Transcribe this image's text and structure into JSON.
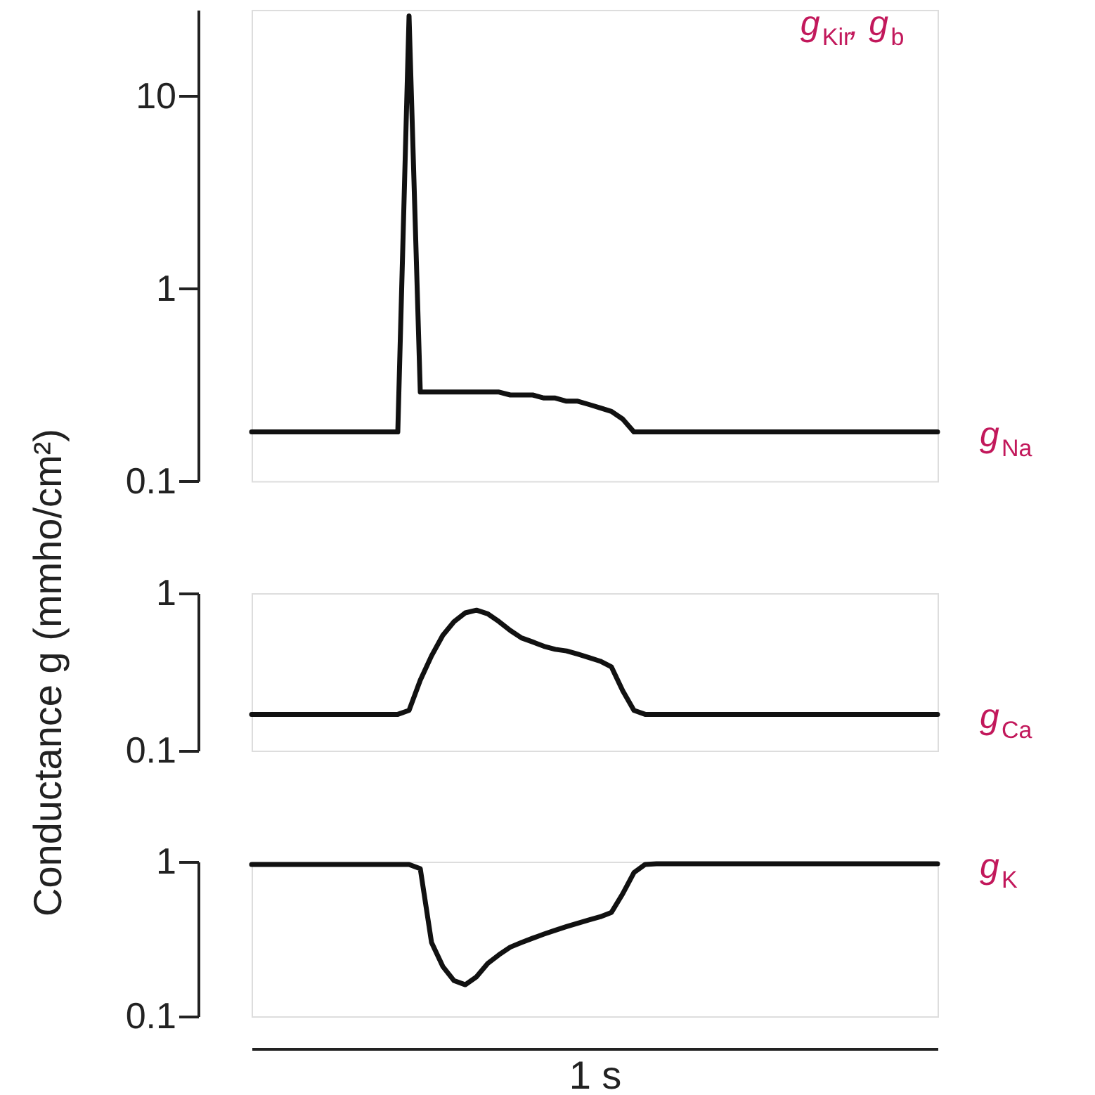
{
  "chart_data": [
    {
      "type": "line",
      "annotations": [
        "g$_{Kir}$, g$_{b}$"
      ],
      "log": true,
      "ylim": [
        0.1,
        28
      ],
      "yticks": [
        0.1,
        1,
        10
      ],
      "tick_labels": "y",
      "categories": [
        null,
        null,
        null,
        null,
        null,
        null,
        null,
        null,
        null,
        null,
        null,
        null,
        null,
        null,
        null,
        null,
        null,
        null,
        null,
        null,
        null,
        null,
        null,
        null,
        null,
        null,
        null,
        null,
        null,
        null,
        null,
        null,
        null,
        null,
        null,
        null,
        null,
        null,
        null,
        null,
        null,
        null,
        null,
        null,
        null,
        null,
        null,
        null,
        null,
        null,
        null,
        null,
        null,
        null,
        null,
        null,
        null,
        null,
        null,
        null,
        null,
        null
      ],
      "series": [
        {
          "name": "g$_{Na}$",
          "color": "#111111",
          "values": [
            0.18,
            0.18,
            0.18,
            0.18,
            0.18,
            0.18,
            0.18,
            0.18,
            0.18,
            0.18,
            0.18,
            0.18,
            0.18,
            0.18,
            26,
            0.29,
            0.29,
            0.29,
            0.29,
            0.29,
            0.29,
            0.29,
            0.29,
            0.28,
            0.28,
            0.28,
            0.27,
            0.27,
            0.26,
            0.26,
            0.25,
            0.24,
            0.23,
            0.21,
            0.18,
            0.18,
            0.18,
            0.18,
            0.18,
            0.18,
            0.18,
            0.18,
            0.18,
            0.18,
            0.18,
            0.18,
            0.18,
            0.18,
            0.18,
            0.18,
            0.18,
            0.18,
            0.18,
            0.18,
            0.18,
            0.18,
            0.18,
            0.18,
            0.18,
            0.18,
            0.18,
            0.18
          ]
        }
      ]
    },
    {
      "type": "line",
      "ylabel": "Conductance g (mmho/cm²)",
      "log": true,
      "ylim": [
        0.1,
        1
      ],
      "yticks": [
        0.1,
        1
      ],
      "tick_labels": "y",
      "categories": [
        null,
        null,
        null,
        null,
        null,
        null,
        null,
        null,
        null,
        null,
        null,
        null,
        null,
        null,
        null,
        null,
        null,
        null,
        null,
        null,
        null,
        null,
        null,
        null,
        null,
        null,
        null,
        null,
        null,
        null,
        null,
        null,
        null,
        null,
        null,
        null,
        null,
        null,
        null,
        null,
        null,
        null,
        null,
        null,
        null,
        null,
        null,
        null,
        null,
        null,
        null,
        null,
        null,
        null,
        null,
        null,
        null,
        null,
        null,
        null,
        null,
        null
      ],
      "series": [
        {
          "name": "g$_{Ca}$",
          "color": "#111111",
          "values": [
            0.17,
            0.17,
            0.17,
            0.17,
            0.17,
            0.17,
            0.17,
            0.17,
            0.17,
            0.17,
            0.17,
            0.17,
            0.17,
            0.17,
            0.18,
            0.28,
            0.4,
            0.54,
            0.66,
            0.75,
            0.78,
            0.74,
            0.66,
            0.58,
            0.52,
            0.49,
            0.46,
            0.44,
            0.43,
            0.41,
            0.39,
            0.37,
            0.34,
            0.24,
            0.18,
            0.17,
            0.17,
            0.17,
            0.17,
            0.17,
            0.17,
            0.17,
            0.17,
            0.17,
            0.17,
            0.17,
            0.17,
            0.17,
            0.17,
            0.17,
            0.17,
            0.17,
            0.17,
            0.17,
            0.17,
            0.17,
            0.17,
            0.17,
            0.17,
            0.17,
            0.17,
            0.17
          ]
        }
      ]
    },
    {
      "type": "line",
      "xlabel": "1 s",
      "log": true,
      "ylim": [
        0.1,
        1
      ],
      "yticks": [
        0.1,
        1
      ],
      "tick_labels": "y",
      "categories": [
        null,
        null,
        null,
        null,
        null,
        null,
        null,
        null,
        null,
        null,
        null,
        null,
        null,
        null,
        null,
        null,
        null,
        null,
        null,
        null,
        null,
        null,
        null,
        null,
        null,
        null,
        null,
        null,
        null,
        null,
        null,
        null,
        null,
        null,
        null,
        null,
        null,
        null,
        null,
        null,
        null,
        null,
        null,
        null,
        null,
        null,
        null,
        null,
        null,
        null,
        null,
        null,
        null,
        null,
        null,
        null,
        null,
        null,
        null,
        null,
        null,
        null
      ],
      "series": [
        {
          "name": "g$_{K}$",
          "color": "#111111",
          "values": [
            0.96,
            0.96,
            0.96,
            0.96,
            0.96,
            0.96,
            0.96,
            0.96,
            0.96,
            0.96,
            0.96,
            0.96,
            0.96,
            0.96,
            0.96,
            0.9,
            0.3,
            0.21,
            0.17,
            0.16,
            0.18,
            0.22,
            0.25,
            0.28,
            0.3,
            0.32,
            0.34,
            0.36,
            0.38,
            0.4,
            0.42,
            0.44,
            0.47,
            0.62,
            0.85,
            0.96,
            0.97,
            0.97,
            0.97,
            0.97,
            0.97,
            0.97,
            0.97,
            0.97,
            0.97,
            0.97,
            0.97,
            0.97,
            0.97,
            0.97,
            0.97,
            0.97,
            0.97,
            0.97,
            0.97,
            0.97,
            0.97,
            0.97,
            0.97,
            0.97,
            0.97,
            0.97
          ]
        }
      ]
    }
  ]
}
